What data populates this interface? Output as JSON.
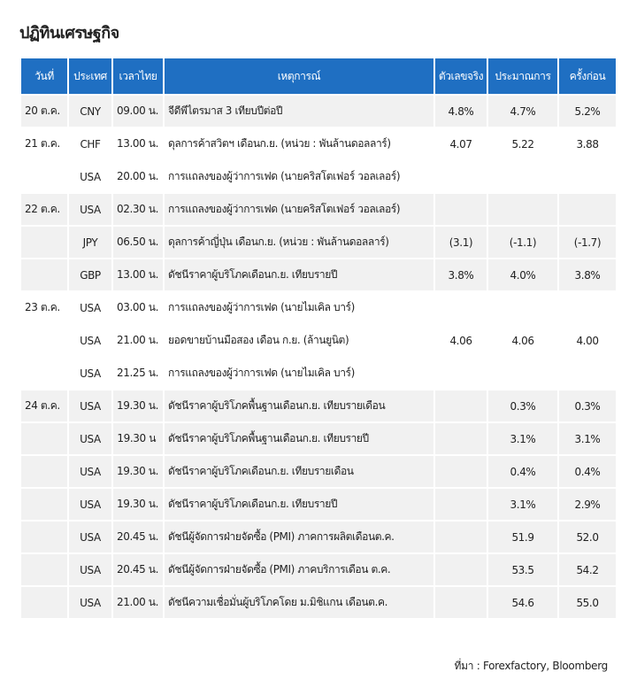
{
  "title": "ปฏิทินเศรษฐกิจ",
  "table": {
    "header": [
      "วันที่",
      "ประเทศ",
      "เวลาไทย",
      "เหตุการณ์",
      "ตัวเลขจริง",
      "ประมาณการ",
      "ครั้งก่อน"
    ],
    "rows": [
      [
        "20 ต.ค.",
        "CNY",
        "09.00 น.",
        "จีดีพีไตรมาส 3 เทียบปีต่อปี",
        "4.8%",
        "4.7%",
        "5.2%"
      ],
      [
        "21 ต.ค.",
        "CHF",
        "13.00 น.",
        "ดุลการค้าสวิตฯ เดือนก.ย. (หน่วย : พันล้านดอลลาร์)",
        "4.07",
        "5.22",
        "3.88"
      ],
      [
        null,
        "USA",
        "20.00 น.",
        "การแถลงของผู้ว่าการเฟด (นายคริสโตเฟอร์ วอลเลอร์)",
        null,
        null,
        null
      ],
      [
        "22 ต.ค.",
        "USA",
        "02.30 น.",
        "การแถลงของผู้ว่าการเฟด (นายคริสโตเฟอร์ วอลเลอร์)",
        null,
        null,
        null
      ],
      [
        null,
        "JPY",
        "06.50 น.",
        "ดุลการค้าญี่ปุ่น เดือนก.ย. (หน่วย : พันล้านดอลลาร์)",
        "(3.1)",
        "(-1.1)",
        "(-1.7)"
      ],
      [
        null,
        "GBP",
        "13.00 น.",
        "ดัชนีราคาผู้บริโภคเดือนก.ย. เทียบรายปี",
        "3.8%",
        "4.0%",
        "3.8%"
      ],
      [
        "23 ต.ค.",
        "USA",
        "03.00 น.",
        "การแถลงของผู้ว่าการเฟด (นายไมเคิล บาร์)",
        null,
        null,
        null
      ],
      [
        null,
        "USA",
        "21.00 น.",
        "ยอดขายบ้านมือสอง เดือน ก.ย. (ล้านยูนิต)",
        "4.06",
        "4.06",
        "4.00"
      ],
      [
        null,
        "USA",
        "21.25 น.",
        "การแถลงของผู้ว่าการเฟด (นายไมเคิล บาร์)",
        null,
        null,
        null
      ],
      [
        "24 ต.ค.",
        "USA",
        "19.30 น.",
        "ดัชนีราคาผู้บริโภคพื้นฐานเดือนก.ย. เทียบรายเดือน",
        null,
        "0.3%",
        "0.3%"
      ],
      [
        null,
        "USA",
        "19.30 น",
        "ดัชนีราคาผู้บริโภคพื้นฐานเดือนก.ย. เทียบรายปี",
        null,
        "3.1%",
        "3.1%"
      ],
      [
        null,
        "USA",
        "19.30 น.",
        "ดัชนีราคาผู้บริโภคเดือนก.ย. เทียบรายเดือน",
        null,
        "0.4%",
        "0.4%"
      ],
      [
        null,
        "USA",
        "19.30 น.",
        "ดัชนีราคาผู้บริโภคเดือนก.ย. เทียบรายปี",
        null,
        "3.1%",
        "2.9%"
      ],
      [
        null,
        "USA",
        "20.45 น.",
        "ดัชนีผู้จัดการฝ่ายจัดซื้อ (PMI) ภาคการผลิตเดือนต.ค.",
        null,
        "51.9",
        "52.0"
      ],
      [
        null,
        "USA",
        "20.45 น.",
        "ดัชนีผู้จัดการฝ่ายจัดซื้อ (PMI) ภาคบริการเดือน ต.ค.",
        null,
        "53.5",
        "54.2"
      ],
      [
        null,
        "USA",
        "21.00 น.",
        "ดัชนีความเชื่อมั่นผู้บริโภคโดย ม.มิชิแกน เดือนต.ค.",
        null,
        "54.6",
        "55.0"
      ]
    ]
  },
  "source": "ที่มา : Forexfactory, Bloomberg"
}
